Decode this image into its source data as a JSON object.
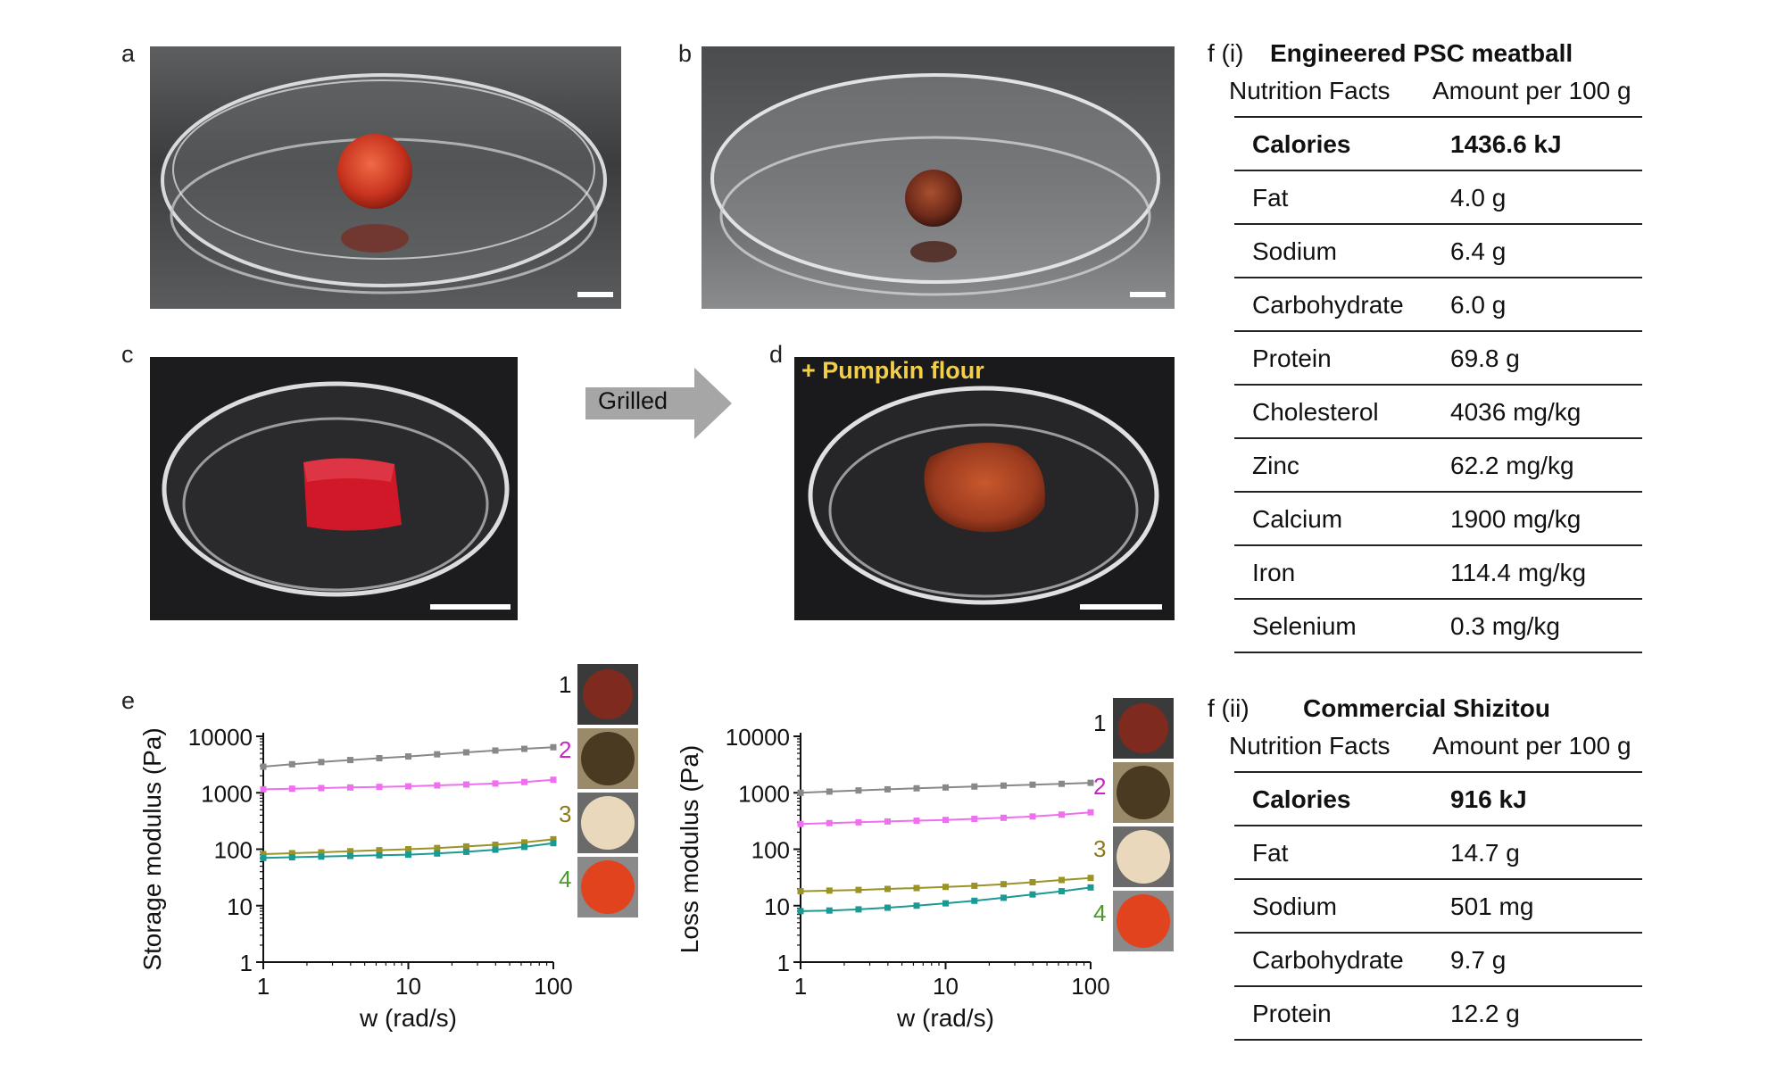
{
  "panels": {
    "a": "a",
    "b": "b",
    "c": "c",
    "d": "d",
    "e": "e"
  },
  "arrow_label": "Grilled",
  "pumpkin_label": "+ Pumpkin flour",
  "colors": {
    "series1": "#888888",
    "series2": "#ee70ee",
    "series3": "#9a9426",
    "series4": "#1a9a94",
    "label2": "#cc22cc",
    "label3": "#8a7a1a",
    "label4": "#4a9a2a",
    "pumpkin": "#f2cf4a"
  },
  "table1": {
    "prefix": "f (i)",
    "title": "Engineered PSC meatball",
    "col1": "Nutrition Facts",
    "col2": "Amount per 100 g",
    "rows": [
      {
        "name": "Calories",
        "value": "1436.6 kJ",
        "bold": true
      },
      {
        "name": "Fat",
        "value": "4.0 g"
      },
      {
        "name": "Sodium",
        "value": "6.4 g"
      },
      {
        "name": "Carbohydrate",
        "value": "6.0 g"
      },
      {
        "name": "Protein",
        "value": "69.8 g"
      },
      {
        "name": "Cholesterol",
        "value": "4036 mg/kg"
      },
      {
        "name": "Zinc",
        "value": "62.2 mg/kg"
      },
      {
        "name": "Calcium",
        "value": "1900 mg/kg"
      },
      {
        "name": "Iron",
        "value": "114.4 mg/kg"
      },
      {
        "name": "Selenium",
        "value": "0.3 mg/kg"
      }
    ]
  },
  "table2": {
    "prefix": "f (ii)",
    "title": "Commercial Shizitou",
    "col1": "Nutrition Facts",
    "col2": "Amount per 100 g",
    "rows": [
      {
        "name": "Calories",
        "value": "916 kJ",
        "bold": true
      },
      {
        "name": "Fat",
        "value": "14.7 g"
      },
      {
        "name": "Sodium",
        "value": "501 mg"
      },
      {
        "name": "Carbohydrate",
        "value": "9.7 g"
      },
      {
        "name": "Protein",
        "value": "12.2 g"
      }
    ]
  },
  "chart_data": [
    {
      "type": "line",
      "xlabel": "w (rad/s)",
      "ylabel": "Storage modulus (Pa)",
      "xscale": "log",
      "yscale": "log",
      "xlim": [
        1,
        100
      ],
      "ylim": [
        1,
        10000
      ],
      "xticks": [
        "1",
        "10",
        "100"
      ],
      "yticks": [
        "1",
        "10",
        "100",
        "1000",
        "10000"
      ],
      "x": [
        1,
        1.58,
        2.51,
        3.98,
        6.31,
        10,
        15.8,
        25.1,
        39.8,
        63.1,
        100
      ],
      "series": [
        {
          "name": "1",
          "values": [
            2900,
            3200,
            3500,
            3800,
            4100,
            4400,
            4800,
            5200,
            5600,
            6000,
            6400
          ]
        },
        {
          "name": "2",
          "values": [
            1150,
            1180,
            1210,
            1240,
            1270,
            1300,
            1350,
            1400,
            1460,
            1550,
            1700
          ]
        },
        {
          "name": "3",
          "values": [
            82,
            85,
            88,
            92,
            96,
            100,
            105,
            112,
            120,
            132,
            150
          ]
        },
        {
          "name": "4",
          "values": [
            70,
            72,
            74,
            76,
            78,
            80,
            84,
            90,
            98,
            110,
            128
          ]
        }
      ]
    },
    {
      "type": "line",
      "xlabel": "w (rad/s)",
      "ylabel": "Loss modulus (Pa)",
      "xscale": "log",
      "yscale": "log",
      "xlim": [
        1,
        100
      ],
      "ylim": [
        1,
        10000
      ],
      "xticks": [
        "1",
        "10",
        "100"
      ],
      "yticks": [
        "1",
        "10",
        "100",
        "1000",
        "10000"
      ],
      "x": [
        1,
        1.58,
        2.51,
        3.98,
        6.31,
        10,
        15.8,
        25.1,
        39.8,
        63.1,
        100
      ],
      "series": [
        {
          "name": "1",
          "values": [
            1000,
            1050,
            1100,
            1150,
            1200,
            1240,
            1290,
            1340,
            1390,
            1440,
            1500
          ]
        },
        {
          "name": "2",
          "values": [
            280,
            290,
            300,
            310,
            320,
            330,
            345,
            360,
            380,
            410,
            450
          ]
        },
        {
          "name": "3",
          "values": [
            18,
            18.5,
            19,
            19.8,
            20.5,
            21.5,
            22.5,
            24,
            26,
            28.5,
            31
          ]
        },
        {
          "name": "4",
          "values": [
            8,
            8.2,
            8.6,
            9.2,
            10,
            11,
            12.2,
            13.8,
            15.8,
            18,
            21
          ]
        }
      ]
    }
  ]
}
